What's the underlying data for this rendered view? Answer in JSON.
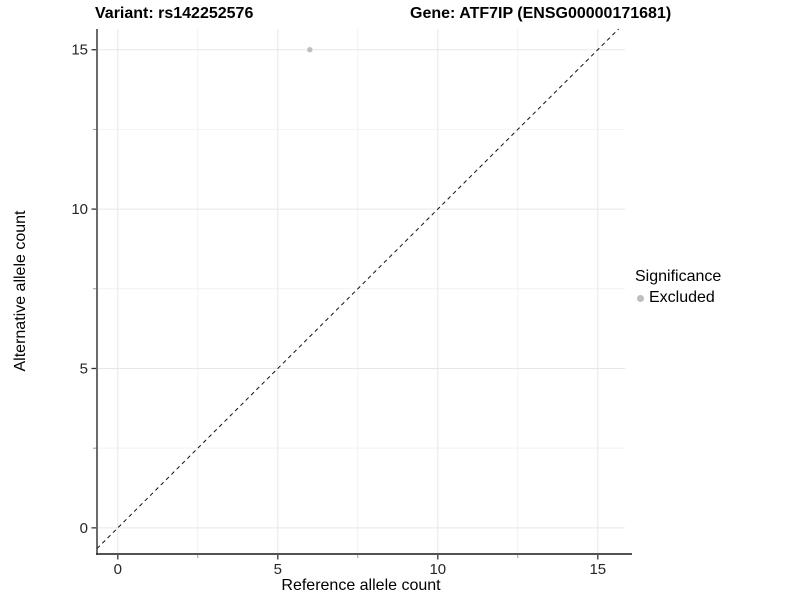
{
  "chart_data": {
    "type": "scatter",
    "title_left": "Variant: rs142252576",
    "title_right": "Gene: ATF7IP (ENSG00000171681)",
    "xlabel": "Reference allele count",
    "ylabel": "Alternative allele count",
    "xlim": [
      -0.65,
      15.85
    ],
    "ylim": [
      -0.82,
      15.65
    ],
    "x_major_ticks": [
      0,
      5,
      10,
      15
    ],
    "x_minor_ticks": [
      2.5,
      7.5,
      12.5
    ],
    "y_major_ticks": [
      0,
      5,
      10,
      15
    ],
    "y_minor_ticks": [
      2.5,
      7.5,
      12.5
    ],
    "grid": true,
    "points": [
      {
        "x": 6,
        "y": 15,
        "series": "Excluded"
      }
    ],
    "reference_line": {
      "kind": "abline",
      "slope": 1,
      "intercept": 0,
      "dashed": true
    },
    "legend": {
      "title": "Significance",
      "position": "right",
      "entries": [
        {
          "label": "Excluded",
          "color": "#bebebe"
        }
      ]
    },
    "colors": {
      "point": "#bebebe",
      "grid_major": "#e7e7e7",
      "grid_minor": "#f2f2f2",
      "axis": "#3a3a3a",
      "tick_major": "#333333",
      "tick_minor": "#999999",
      "ref_line": "#111111",
      "tick_label": "#262626"
    }
  }
}
